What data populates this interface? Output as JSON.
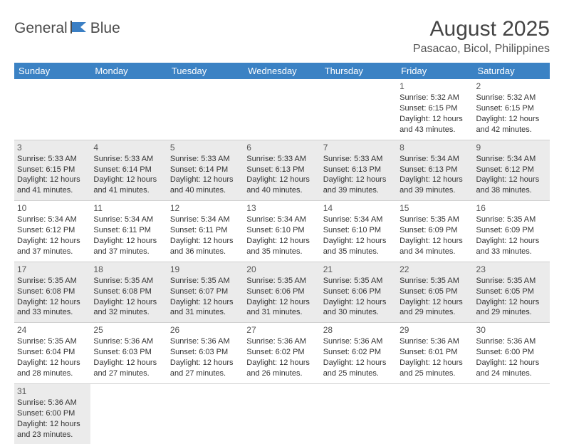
{
  "brand": {
    "part1": "General",
    "part2": "Blue"
  },
  "title": "August 2025",
  "location": "Pasacao, Bicol, Philippines",
  "colors": {
    "header_bg": "#3b82c4",
    "header_fg": "#ffffff",
    "shaded_bg": "#ebebeb",
    "border": "#d0d0d0",
    "text": "#333333",
    "logo_gray": "#4a4a4a",
    "logo_blue": "#3b7fc4"
  },
  "typography": {
    "title_fontsize": 30,
    "location_fontsize": 16,
    "header_fontsize": 13,
    "cell_fontsize": 11
  },
  "weekdays": [
    "Sunday",
    "Monday",
    "Tuesday",
    "Wednesday",
    "Thursday",
    "Friday",
    "Saturday"
  ],
  "weeks": [
    [
      null,
      null,
      null,
      null,
      null,
      {
        "day": "1",
        "sunrise": "Sunrise: 5:32 AM",
        "sunset": "Sunset: 6:15 PM",
        "daylight": "Daylight: 12 hours and 43 minutes."
      },
      {
        "day": "2",
        "sunrise": "Sunrise: 5:32 AM",
        "sunset": "Sunset: 6:15 PM",
        "daylight": "Daylight: 12 hours and 42 minutes."
      }
    ],
    [
      {
        "day": "3",
        "sunrise": "Sunrise: 5:33 AM",
        "sunset": "Sunset: 6:15 PM",
        "daylight": "Daylight: 12 hours and 41 minutes."
      },
      {
        "day": "4",
        "sunrise": "Sunrise: 5:33 AM",
        "sunset": "Sunset: 6:14 PM",
        "daylight": "Daylight: 12 hours and 41 minutes."
      },
      {
        "day": "5",
        "sunrise": "Sunrise: 5:33 AM",
        "sunset": "Sunset: 6:14 PM",
        "daylight": "Daylight: 12 hours and 40 minutes."
      },
      {
        "day": "6",
        "sunrise": "Sunrise: 5:33 AM",
        "sunset": "Sunset: 6:13 PM",
        "daylight": "Daylight: 12 hours and 40 minutes."
      },
      {
        "day": "7",
        "sunrise": "Sunrise: 5:33 AM",
        "sunset": "Sunset: 6:13 PM",
        "daylight": "Daylight: 12 hours and 39 minutes."
      },
      {
        "day": "8",
        "sunrise": "Sunrise: 5:34 AM",
        "sunset": "Sunset: 6:13 PM",
        "daylight": "Daylight: 12 hours and 39 minutes."
      },
      {
        "day": "9",
        "sunrise": "Sunrise: 5:34 AM",
        "sunset": "Sunset: 6:12 PM",
        "daylight": "Daylight: 12 hours and 38 minutes."
      }
    ],
    [
      {
        "day": "10",
        "sunrise": "Sunrise: 5:34 AM",
        "sunset": "Sunset: 6:12 PM",
        "daylight": "Daylight: 12 hours and 37 minutes."
      },
      {
        "day": "11",
        "sunrise": "Sunrise: 5:34 AM",
        "sunset": "Sunset: 6:11 PM",
        "daylight": "Daylight: 12 hours and 37 minutes."
      },
      {
        "day": "12",
        "sunrise": "Sunrise: 5:34 AM",
        "sunset": "Sunset: 6:11 PM",
        "daylight": "Daylight: 12 hours and 36 minutes."
      },
      {
        "day": "13",
        "sunrise": "Sunrise: 5:34 AM",
        "sunset": "Sunset: 6:10 PM",
        "daylight": "Daylight: 12 hours and 35 minutes."
      },
      {
        "day": "14",
        "sunrise": "Sunrise: 5:34 AM",
        "sunset": "Sunset: 6:10 PM",
        "daylight": "Daylight: 12 hours and 35 minutes."
      },
      {
        "day": "15",
        "sunrise": "Sunrise: 5:35 AM",
        "sunset": "Sunset: 6:09 PM",
        "daylight": "Daylight: 12 hours and 34 minutes."
      },
      {
        "day": "16",
        "sunrise": "Sunrise: 5:35 AM",
        "sunset": "Sunset: 6:09 PM",
        "daylight": "Daylight: 12 hours and 33 minutes."
      }
    ],
    [
      {
        "day": "17",
        "sunrise": "Sunrise: 5:35 AM",
        "sunset": "Sunset: 6:08 PM",
        "daylight": "Daylight: 12 hours and 33 minutes."
      },
      {
        "day": "18",
        "sunrise": "Sunrise: 5:35 AM",
        "sunset": "Sunset: 6:08 PM",
        "daylight": "Daylight: 12 hours and 32 minutes."
      },
      {
        "day": "19",
        "sunrise": "Sunrise: 5:35 AM",
        "sunset": "Sunset: 6:07 PM",
        "daylight": "Daylight: 12 hours and 31 minutes."
      },
      {
        "day": "20",
        "sunrise": "Sunrise: 5:35 AM",
        "sunset": "Sunset: 6:06 PM",
        "daylight": "Daylight: 12 hours and 31 minutes."
      },
      {
        "day": "21",
        "sunrise": "Sunrise: 5:35 AM",
        "sunset": "Sunset: 6:06 PM",
        "daylight": "Daylight: 12 hours and 30 minutes."
      },
      {
        "day": "22",
        "sunrise": "Sunrise: 5:35 AM",
        "sunset": "Sunset: 6:05 PM",
        "daylight": "Daylight: 12 hours and 29 minutes."
      },
      {
        "day": "23",
        "sunrise": "Sunrise: 5:35 AM",
        "sunset": "Sunset: 6:05 PM",
        "daylight": "Daylight: 12 hours and 29 minutes."
      }
    ],
    [
      {
        "day": "24",
        "sunrise": "Sunrise: 5:35 AM",
        "sunset": "Sunset: 6:04 PM",
        "daylight": "Daylight: 12 hours and 28 minutes."
      },
      {
        "day": "25",
        "sunrise": "Sunrise: 5:36 AM",
        "sunset": "Sunset: 6:03 PM",
        "daylight": "Daylight: 12 hours and 27 minutes."
      },
      {
        "day": "26",
        "sunrise": "Sunrise: 5:36 AM",
        "sunset": "Sunset: 6:03 PM",
        "daylight": "Daylight: 12 hours and 27 minutes."
      },
      {
        "day": "27",
        "sunrise": "Sunrise: 5:36 AM",
        "sunset": "Sunset: 6:02 PM",
        "daylight": "Daylight: 12 hours and 26 minutes."
      },
      {
        "day": "28",
        "sunrise": "Sunrise: 5:36 AM",
        "sunset": "Sunset: 6:02 PM",
        "daylight": "Daylight: 12 hours and 25 minutes."
      },
      {
        "day": "29",
        "sunrise": "Sunrise: 5:36 AM",
        "sunset": "Sunset: 6:01 PM",
        "daylight": "Daylight: 12 hours and 25 minutes."
      },
      {
        "day": "30",
        "sunrise": "Sunrise: 5:36 AM",
        "sunset": "Sunset: 6:00 PM",
        "daylight": "Daylight: 12 hours and 24 minutes."
      }
    ],
    [
      {
        "day": "31",
        "sunrise": "Sunrise: 5:36 AM",
        "sunset": "Sunset: 6:00 PM",
        "daylight": "Daylight: 12 hours and 23 minutes."
      },
      null,
      null,
      null,
      null,
      null,
      null
    ]
  ]
}
